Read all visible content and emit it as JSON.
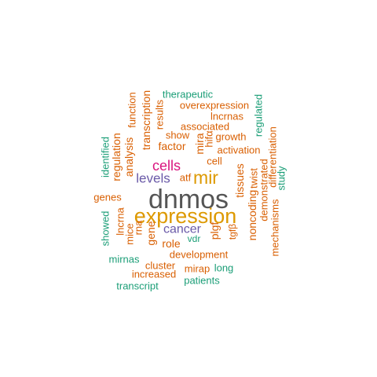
{
  "palette": {
    "grey": "#555555",
    "gold": "#dd9900",
    "magenta": "#d9137e",
    "purple": "#6a5aa8",
    "orange": "#d95f02",
    "teal": "#1b9e77"
  },
  "words": [
    {
      "text": "dnmos",
      "color": "grey",
      "weight": 5
    },
    {
      "text": "expression",
      "color": "gold",
      "weight": 4
    },
    {
      "text": "mir",
      "color": "gold",
      "weight": 3
    },
    {
      "text": "cells",
      "color": "magenta",
      "weight": 2
    },
    {
      "text": "levels",
      "color": "purple",
      "weight": 2
    },
    {
      "text": "cancer",
      "color": "purple",
      "weight": 2
    },
    {
      "text": "therapeutic",
      "color": "teal",
      "weight": 1
    },
    {
      "text": "overexpression",
      "color": "orange",
      "weight": 1
    },
    {
      "text": "lncrnas",
      "color": "orange",
      "weight": 1
    },
    {
      "text": "associated",
      "color": "orange",
      "weight": 1
    },
    {
      "text": "show",
      "color": "orange",
      "weight": 1
    },
    {
      "text": "growth",
      "color": "orange",
      "weight": 1
    },
    {
      "text": "factor",
      "color": "orange",
      "weight": 1
    },
    {
      "text": "activation",
      "color": "orange",
      "weight": 1
    },
    {
      "text": "cell",
      "color": "orange",
      "weight": 1
    },
    {
      "text": "atf",
      "color": "orange",
      "weight": 1
    },
    {
      "text": "genes",
      "color": "orange",
      "weight": 1
    },
    {
      "text": "role",
      "color": "orange",
      "weight": 1
    },
    {
      "text": "vdr",
      "color": "teal",
      "weight": 1
    },
    {
      "text": "development",
      "color": "orange",
      "weight": 1
    },
    {
      "text": "mirnas",
      "color": "teal",
      "weight": 1
    },
    {
      "text": "cluster",
      "color": "orange",
      "weight": 1
    },
    {
      "text": "mirap",
      "color": "orange",
      "weight": 1
    },
    {
      "text": "long",
      "color": "teal",
      "weight": 1
    },
    {
      "text": "increased",
      "color": "orange",
      "weight": 1
    },
    {
      "text": "patients",
      "color": "teal",
      "weight": 1
    },
    {
      "text": "transcript",
      "color": "teal",
      "weight": 1
    },
    {
      "text": "function",
      "color": "orange",
      "weight": 1
    },
    {
      "text": "transcription",
      "color": "orange",
      "weight": 1
    },
    {
      "text": "results",
      "color": "orange",
      "weight": 1
    },
    {
      "text": "analysis",
      "color": "orange",
      "weight": 1
    },
    {
      "text": "regulation",
      "color": "orange",
      "weight": 1
    },
    {
      "text": "identified",
      "color": "teal",
      "weight": 1
    },
    {
      "text": "mira",
      "color": "orange",
      "weight": 1
    },
    {
      "text": "hifα",
      "color": "orange",
      "weight": 1
    },
    {
      "text": "regulated",
      "color": "teal",
      "weight": 1
    },
    {
      "text": "differentiation",
      "color": "orange",
      "weight": 1
    },
    {
      "text": "study",
      "color": "teal",
      "weight": 1
    },
    {
      "text": "tissues",
      "color": "orange",
      "weight": 1
    },
    {
      "text": "twist",
      "color": "orange",
      "weight": 1
    },
    {
      "text": "demonstrated",
      "color": "orange",
      "weight": 1
    },
    {
      "text": "noncoding",
      "color": "orange",
      "weight": 1
    },
    {
      "text": "mechanisms",
      "color": "orange",
      "weight": 1
    },
    {
      "text": "tgfβ",
      "color": "orange",
      "weight": 1
    },
    {
      "text": "plgf",
      "color": "orange",
      "weight": 1
    },
    {
      "text": "gene",
      "color": "orange",
      "weight": 1
    },
    {
      "text": "rna",
      "color": "orange",
      "weight": 1
    },
    {
      "text": "mice",
      "color": "orange",
      "weight": 1
    },
    {
      "text": "lncrna",
      "color": "orange",
      "weight": 1
    },
    {
      "text": "showed",
      "color": "teal",
      "weight": 1
    }
  ]
}
